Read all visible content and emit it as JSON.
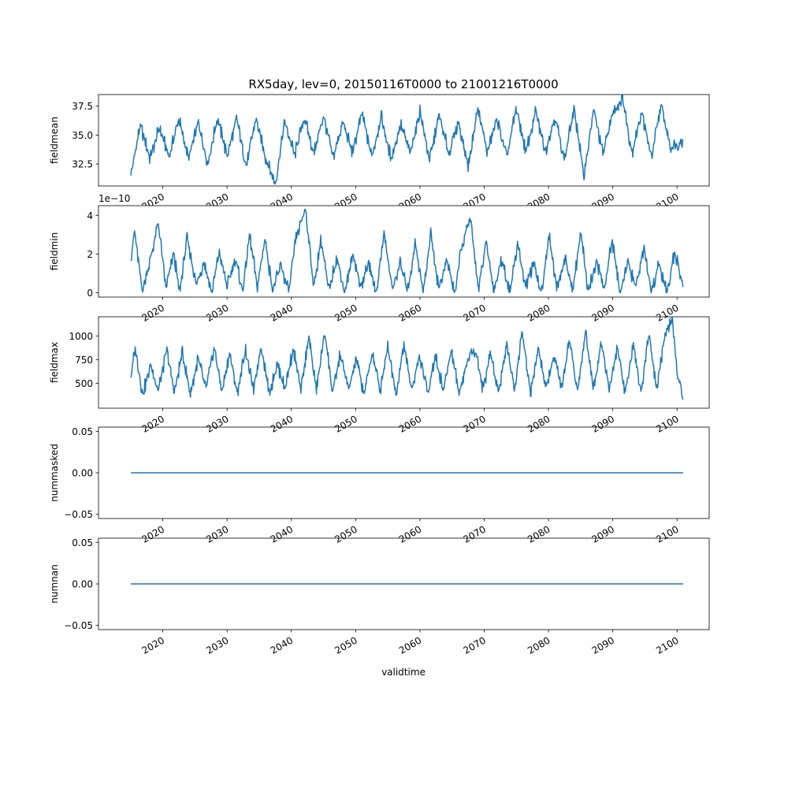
{
  "figure": {
    "title": "RX5day, lev=0, 20150116T0000 to 21001216T0000",
    "xlabel": "validtime",
    "line_color": "#1f77b4"
  },
  "chart_data": [
    {
      "type": "line",
      "ylabel": "fieldmean",
      "xlim": [
        2010,
        2105
      ],
      "ylim": [
        30.6,
        38.5
      ],
      "yticks": [
        "32.5",
        "35.0",
        "37.5"
      ],
      "ytick_values": [
        32.5,
        35.0,
        37.5
      ],
      "xticks": [
        "2020",
        "2030",
        "2040",
        "2050",
        "2060",
        "2070",
        "2080",
        "2090",
        "2100"
      ],
      "xtick_values": [
        2020,
        2030,
        2040,
        2050,
        2060,
        2070,
        2080,
        2090,
        2100
      ],
      "offset_text": "",
      "series_range": [
        2015.04,
        2100.96
      ],
      "series": [
        {
          "x": [
            2015.04,
            2016.5,
            2018,
            2019.5,
            2021,
            2022.5,
            2024,
            2025.5,
            2027,
            2028.5,
            2030,
            2031.5,
            2033,
            2034.5,
            2036,
            2037.5,
            2039,
            2040.5,
            2042,
            2043.5,
            2045,
            2046.5,
            2048,
            2049.5,
            2051,
            2052.5,
            2054,
            2055.5,
            2057,
            2058.5,
            2060,
            2061.5,
            2063,
            2064.5,
            2066,
            2067.5,
            2069,
            2070.5,
            2072,
            2073.5,
            2075,
            2076.5,
            2078,
            2079.5,
            2081,
            2082.5,
            2084,
            2085.5,
            2087,
            2088.5,
            2090,
            2091.5,
            2093,
            2094.5,
            2096,
            2097.5,
            2099,
            2100.96
          ],
          "y": [
            31.5,
            35.9,
            33.0,
            35.6,
            33.1,
            36.4,
            32.9,
            36.1,
            32.5,
            36.5,
            33.2,
            36.4,
            32.3,
            36.5,
            33.0,
            30.8,
            36.2,
            33.2,
            36.5,
            33.4,
            36.7,
            33.0,
            36.1,
            33.5,
            36.9,
            33.1,
            36.6,
            32.9,
            35.9,
            33.4,
            37.1,
            32.8,
            36.7,
            33.3,
            36.2,
            32.3,
            37.3,
            33.5,
            36.5,
            33.0,
            37.4,
            33.5,
            37.0,
            33.6,
            36.6,
            32.9,
            37.3,
            31.5,
            37.2,
            33.4,
            36.9,
            38.2,
            33.5,
            37.1,
            33.0,
            37.6,
            33.9,
            34.5
          ]
        }
      ]
    },
    {
      "type": "line",
      "ylabel": "fieldmin",
      "xlim": [
        2010,
        2105
      ],
      "ylim": [
        -0.22,
        4.5
      ],
      "yticks": [
        "0",
        "2",
        "4"
      ],
      "ytick_values": [
        0,
        2,
        4
      ],
      "xticks": [
        "2020",
        "2030",
        "2040",
        "2050",
        "2060",
        "2070",
        "2080",
        "2090",
        "2100"
      ],
      "xtick_values": [
        2020,
        2030,
        2040,
        2050,
        2060,
        2070,
        2080,
        2090,
        2100
      ],
      "offset_text": "1e−10",
      "series_range": [
        2015.04,
        2100.96
      ],
      "series": [
        {
          "x": [
            2015.04,
            2015.6,
            2016.8,
            2017.9,
            2019.3,
            2020.5,
            2021.7,
            2022.6,
            2023.8,
            2025.2,
            2026.4,
            2027.6,
            2028.8,
            2030.0,
            2031.3,
            2032.4,
            2033.5,
            2034.7,
            2035.9,
            2037.1,
            2038.4,
            2039.6,
            2040.7,
            2042.2,
            2043.5,
            2044.6,
            2045.8,
            2047.1,
            2048.3,
            2049.6,
            2050.8,
            2052.0,
            2053.2,
            2054.4,
            2055.7,
            2056.9,
            2058.1,
            2059.3,
            2060.5,
            2061.7,
            2062.9,
            2064.2,
            2065.4,
            2066.6,
            2067.8,
            2069.1,
            2070.3,
            2071.5,
            2072.7,
            2074.0,
            2075.2,
            2076.4,
            2077.6,
            2078.9,
            2080.1,
            2081.3,
            2082.6,
            2083.8,
            2085.0,
            2086.2,
            2087.5,
            2088.7,
            2089.9,
            2091.1,
            2092.3,
            2093.6,
            2094.8,
            2096.0,
            2097.2,
            2098.4,
            2099.6,
            2100.96
          ],
          "y": [
            1.7,
            3.2,
            0.1,
            1.5,
            3.6,
            0.2,
            2.1,
            0.0,
            2.8,
            0.4,
            1.6,
            0.0,
            2.1,
            0.3,
            1.8,
            0.1,
            3.0,
            0.3,
            2.8,
            0.1,
            1.4,
            0.0,
            2.8,
            4.4,
            0.2,
            2.8,
            0.1,
            1.8,
            0.0,
            2.0,
            0.3,
            1.6,
            0.0,
            3.1,
            0.2,
            1.5,
            0.1,
            2.6,
            0.0,
            3.1,
            0.2,
            1.7,
            0.0,
            2.5,
            3.9,
            0.2,
            2.6,
            0.1,
            1.8,
            0.0,
            2.6,
            0.3,
            1.5,
            0.0,
            3.0,
            0.2,
            1.8,
            0.1,
            3.2,
            0.0,
            1.7,
            0.2,
            2.7,
            0.0,
            1.5,
            0.3,
            2.3,
            0.1,
            1.5,
            0.0,
            2.1,
            0.3
          ]
        }
      ]
    },
    {
      "type": "line",
      "ylabel": "fieldmax",
      "xlim": [
        2010,
        2105
      ],
      "ylim": [
        237,
        1202
      ],
      "yticks": [
        "500",
        "750",
        "1000"
      ],
      "ytick_values": [
        500,
        750,
        1000
      ],
      "xticks": [
        "2020",
        "2030",
        "2040",
        "2050",
        "2060",
        "2070",
        "2080",
        "2090",
        "2100"
      ],
      "xtick_values": [
        2020,
        2030,
        2040,
        2050,
        2060,
        2070,
        2080,
        2090,
        2100
      ],
      "offset_text": "",
      "series_range": [
        2015.04,
        2100.96
      ],
      "series": [
        {
          "x": [
            2015.04,
            2015.7,
            2016.9,
            2018.1,
            2019.3,
            2020.6,
            2021.8,
            2023.0,
            2024.3,
            2025.5,
            2026.7,
            2028.0,
            2029.2,
            2030.4,
            2031.6,
            2032.9,
            2034.1,
            2035.3,
            2036.6,
            2037.8,
            2039.0,
            2040.3,
            2041.5,
            2042.7,
            2043.9,
            2045.2,
            2046.4,
            2047.6,
            2048.9,
            2050.1,
            2051.3,
            2052.6,
            2053.8,
            2055.0,
            2056.3,
            2057.5,
            2058.7,
            2059.9,
            2061.2,
            2062.4,
            2063.6,
            2064.9,
            2066.1,
            2067.3,
            2068.6,
            2069.8,
            2071.0,
            2072.2,
            2073.5,
            2074.7,
            2075.9,
            2077.2,
            2078.4,
            2079.6,
            2080.9,
            2082.1,
            2083.3,
            2084.5,
            2085.8,
            2087.0,
            2088.2,
            2089.5,
            2090.7,
            2091.9,
            2093.2,
            2094.4,
            2095.6,
            2096.8,
            2098.1,
            2099.3,
            2100.0,
            2100.96
          ],
          "y": [
            560,
            870,
            380,
            700,
            420,
            850,
            400,
            820,
            390,
            760,
            430,
            880,
            410,
            820,
            400,
            860,
            420,
            900,
            390,
            710,
            440,
            870,
            410,
            1000,
            430,
            1050,
            400,
            800,
            430,
            760,
            390,
            820,
            420,
            900,
            380,
            920,
            430,
            780,
            400,
            800,
            420,
            850,
            390,
            720,
            870,
            440,
            820,
            400,
            920,
            430,
            1060,
            410,
            860,
            440,
            790,
            430,
            960,
            410,
            1050,
            420,
            960,
            430,
            880,
            400,
            920,
            410,
            1020,
            430,
            1010,
            1180,
            600,
            330
          ]
        }
      ]
    },
    {
      "type": "line",
      "ylabel": "nummasked",
      "xlim": [
        2010,
        2105
      ],
      "ylim": [
        -0.055,
        0.055
      ],
      "yticks": [
        "−0.05",
        "0.00",
        "0.05"
      ],
      "ytick_values": [
        -0.05,
        0.0,
        0.05
      ],
      "xticks": [
        "2020",
        "2030",
        "2040",
        "2050",
        "2060",
        "2070",
        "2080",
        "2090",
        "2100"
      ],
      "xtick_values": [
        2020,
        2030,
        2040,
        2050,
        2060,
        2070,
        2080,
        2090,
        2100
      ],
      "offset_text": "",
      "series_range": [
        2015.04,
        2100.96
      ],
      "series": [
        {
          "x": [
            2015.04,
            2100.96
          ],
          "y": [
            0.0,
            0.0
          ]
        }
      ]
    },
    {
      "type": "line",
      "ylabel": "numnan",
      "xlim": [
        2010,
        2105
      ],
      "ylim": [
        -0.055,
        0.055
      ],
      "yticks": [
        "−0.05",
        "0.00",
        "0.05"
      ],
      "ytick_values": [
        -0.05,
        0.0,
        0.05
      ],
      "xticks": [
        "2020",
        "2030",
        "2040",
        "2050",
        "2060",
        "2070",
        "2080",
        "2090",
        "2100"
      ],
      "xtick_values": [
        2020,
        2030,
        2040,
        2050,
        2060,
        2070,
        2080,
        2090,
        2100
      ],
      "offset_text": "",
      "series_range": [
        2015.04,
        2100.96
      ],
      "series": [
        {
          "x": [
            2015.04,
            2100.96
          ],
          "y": [
            0.0,
            0.0
          ]
        }
      ]
    }
  ]
}
